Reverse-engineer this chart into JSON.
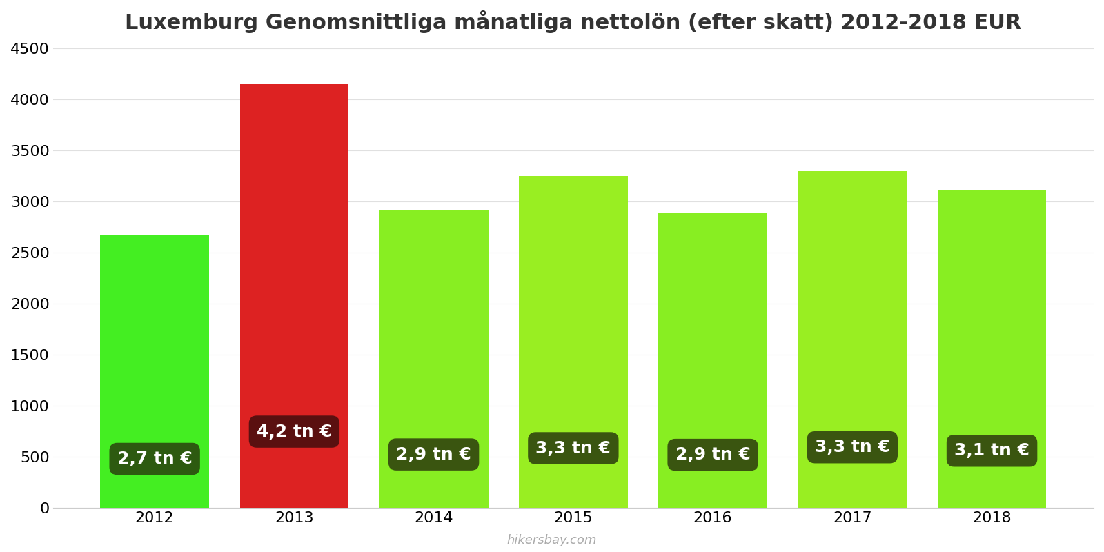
{
  "title": "Luxemburg Genomsnittliga månatliga nettolön (efter skatt) 2012-2018 EUR",
  "years": [
    2012,
    2013,
    2014,
    2015,
    2016,
    2017,
    2018
  ],
  "values": [
    2670,
    4150,
    2910,
    3250,
    2890,
    3300,
    3110
  ],
  "bar_colors": [
    "#44ee22",
    "#dd2222",
    "#88ee22",
    "#99ee22",
    "#88ee22",
    "#99ee22",
    "#88ee22"
  ],
  "label_texts": [
    "2,7 tn €",
    "4,2 tn €",
    "2,9 tn €",
    "3,3 tn €",
    "2,9 tn €",
    "3,3 tn €",
    "3,1 tn €"
  ],
  "label_bg_colors": [
    "#2d5a10",
    "#5a1010",
    "#3a5510",
    "#3a5510",
    "#3a5510",
    "#3a5510",
    "#3a5510"
  ],
  "ylim": [
    0,
    4500
  ],
  "yticks": [
    0,
    500,
    1000,
    1500,
    2000,
    2500,
    3000,
    3500,
    4000,
    4500
  ],
  "watermark": "hikersbay.com",
  "title_fontsize": 22,
  "tick_fontsize": 16,
  "label_fontsize": 18,
  "bar_width": 0.78,
  "background_color": "#ffffff"
}
